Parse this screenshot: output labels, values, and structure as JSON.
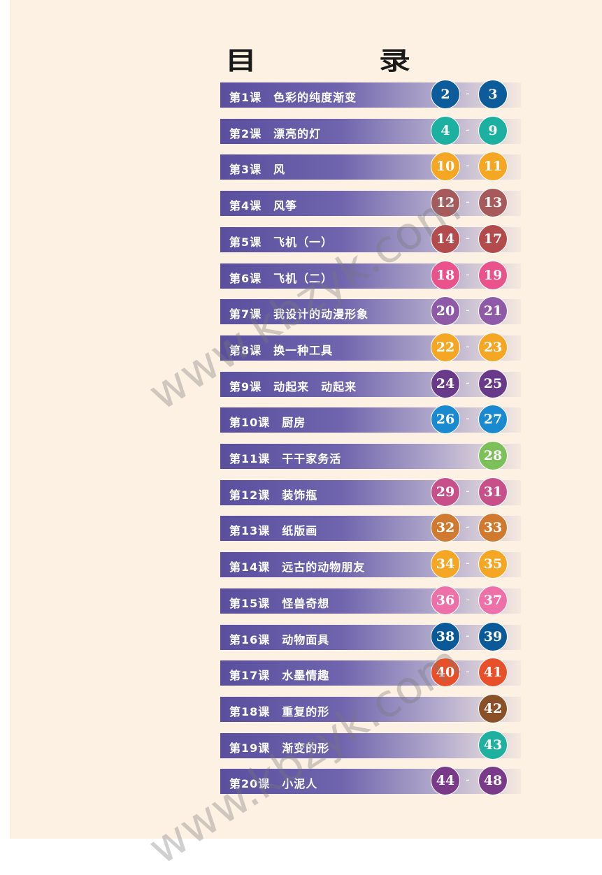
{
  "title": "目　录",
  "watermark": "www.kbzyk.com",
  "lessons": [
    {
      "label": "第1课　色彩的纯度渐变",
      "start": "2",
      "end": "3",
      "color": "#0c5b9a"
    },
    {
      "label": "第2课　漂亮的灯",
      "start": "4",
      "end": "9",
      "color": "#1bb0a0"
    },
    {
      "label": "第3课　风",
      "start": "10",
      "end": "11",
      "color": "#f5a623"
    },
    {
      "label": "第4课　风筝",
      "start": "12",
      "end": "13",
      "color": "#a65a5c"
    },
    {
      "label": "第5课　飞机（一）",
      "start": "14",
      "end": "17",
      "color": "#b34a4c"
    },
    {
      "label": "第6课　飞机（二）",
      "start": "18",
      "end": "19",
      "color": "#e9528a"
    },
    {
      "label": "第7课　我设计的动漫形象",
      "start": "20",
      "end": "21",
      "color": "#8e5aa8"
    },
    {
      "label": "第8课　换一种工具",
      "start": "22",
      "end": "23",
      "color": "#f5a623"
    },
    {
      "label": "第9课　动起来　动起来",
      "start": "24",
      "end": "25",
      "color": "#6a3a8a"
    },
    {
      "label": "第10课　厨房",
      "start": "26",
      "end": "27",
      "color": "#1a8ad0"
    },
    {
      "label": "第11课　干干家务活",
      "start": null,
      "end": "28",
      "color": "#7cc05a"
    },
    {
      "label": "第12课　装饰瓶",
      "start": "29",
      "end": "31",
      "color": "#c8508a"
    },
    {
      "label": "第13课　纸版画",
      "start": "32",
      "end": "33",
      "color": "#d07a30"
    },
    {
      "label": "第14课　远古的动物朋友",
      "start": "34",
      "end": "35",
      "color": "#f5a623"
    },
    {
      "label": "第15课　怪兽奇想",
      "start": "36",
      "end": "37",
      "color": "#ee70a8"
    },
    {
      "label": "第16课　动物面具",
      "start": "38",
      "end": "39",
      "color": "#0a5a9a"
    },
    {
      "label": "第17课　水墨情趣",
      "start": "40",
      "end": "41",
      "color": "#e8502a"
    },
    {
      "label": "第18课　重复的形",
      "start": null,
      "end": "42",
      "color": "#8a5028"
    },
    {
      "label": "第19课　渐变的形",
      "start": null,
      "end": "43",
      "color": "#20b0a0"
    },
    {
      "label": "第20课　小泥人",
      "start": "44",
      "end": "48",
      "color": "#7a3a8a"
    }
  ]
}
